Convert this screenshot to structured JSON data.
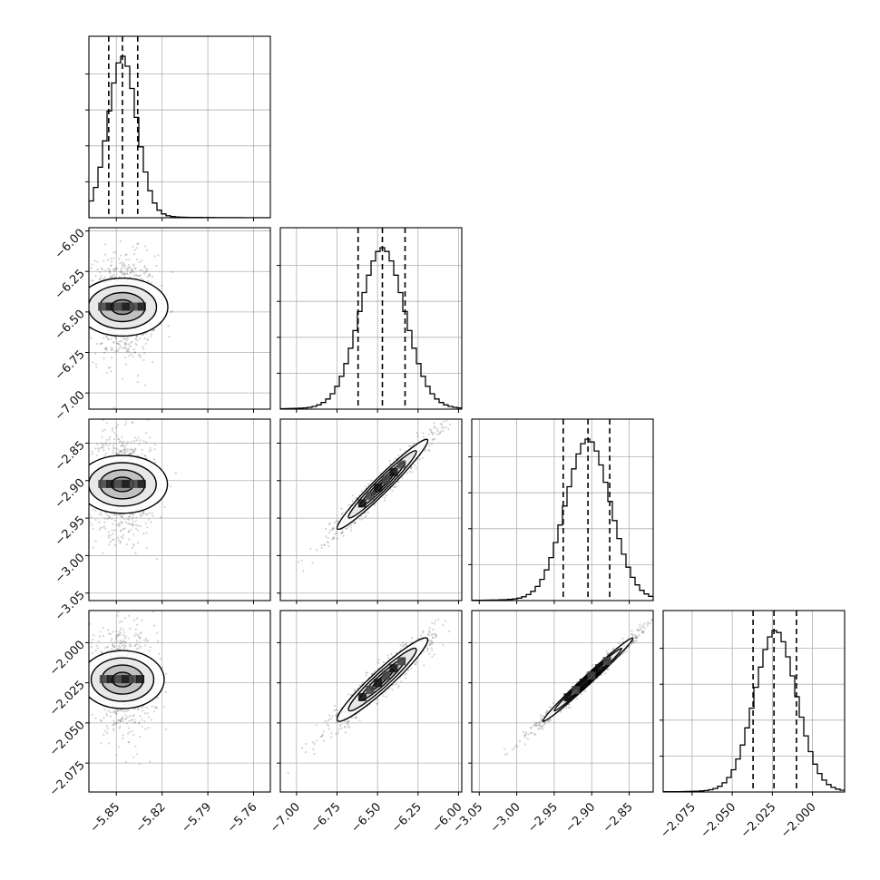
{
  "chart_data": {
    "type": "corner",
    "grid": true,
    "colors": {
      "line": "#000000",
      "grid": "#b0b0b0",
      "scatter": "#555555",
      "bin": "#000000"
    },
    "parameters": [
      {
        "range": [
          -5.868,
          -5.749
        ],
        "ticks": [
          -5.85,
          -5.82,
          -5.79,
          -5.76
        ],
        "tick_labels": [
          "−5.85",
          "−5.82",
          "−5.79",
          "−5.76"
        ],
        "mean": -5.846,
        "sd": 0.0095,
        "quantiles": [
          -5.855,
          -5.846,
          -5.836
        ]
      },
      {
        "range": [
          -7.1,
          -5.98
        ],
        "ticks": [
          -7.0,
          -6.75,
          -6.5,
          -6.25,
          -6.0
        ],
        "tick_labels": [
          "−7.00",
          "−6.75",
          "−6.50",
          "−6.25",
          "−6.00"
        ],
        "mean": -6.47,
        "sd": 0.14,
        "quantiles": [
          -6.62,
          -6.47,
          -6.33
        ]
      },
      {
        "range": [
          -3.06,
          -2.818
        ],
        "ticks": [
          -3.05,
          -3.0,
          -2.95,
          -2.9,
          -2.85
        ],
        "tick_labels": [
          "−3.05",
          "−3.00",
          "−2.95",
          "−2.90",
          "−2.85"
        ],
        "mean": -2.905,
        "sd": 0.03,
        "quantiles": [
          -2.938,
          -2.905,
          -2.876
        ]
      },
      {
        "range": [
          -2.093,
          -1.98
        ],
        "ticks": [
          -2.075,
          -2.05,
          -2.025,
          -2.0
        ],
        "tick_labels": [
          "−2.075",
          "−2.050",
          "−2.025",
          "−2.000"
        ],
        "mean": -2.023,
        "sd": 0.013,
        "quantiles": [
          -2.037,
          -2.024,
          -2.01
        ]
      }
    ],
    "correlations": [
      {
        "i": 1,
        "j": 0,
        "rho": 0.0
      },
      {
        "i": 2,
        "j": 0,
        "rho": 0.0
      },
      {
        "i": 3,
        "j": 0,
        "rho": 0.0
      },
      {
        "i": 2,
        "j": 1,
        "rho": 0.97
      },
      {
        "i": 3,
        "j": 1,
        "rho": 0.95
      },
      {
        "i": 3,
        "j": 2,
        "rho": 0.99
      }
    ],
    "histogram_bins": 20,
    "contour_levels_sigma": [
      0.5,
      1.0,
      1.5,
      2.0
    ]
  }
}
